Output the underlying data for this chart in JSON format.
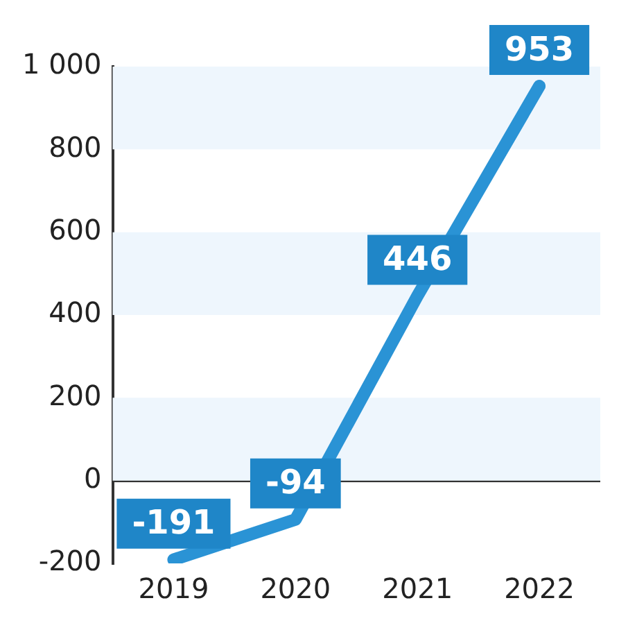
{
  "chart_data": {
    "type": "line",
    "categories": [
      "2019",
      "2020",
      "2021",
      "2022"
    ],
    "series": [
      {
        "color": "#2a93d5",
        "values": [
          -191,
          -94,
          446,
          953
        ]
      }
    ],
    "ylim": [
      -200,
      1000
    ],
    "yticks": [
      -200,
      0,
      200,
      400,
      600,
      {
        "value": 1000,
        "label": "1 000"
      },
      800
    ],
    "grid": "y",
    "legend": false,
    "marker": "none",
    "line_style": "solid",
    "data_labels": true
  }
}
